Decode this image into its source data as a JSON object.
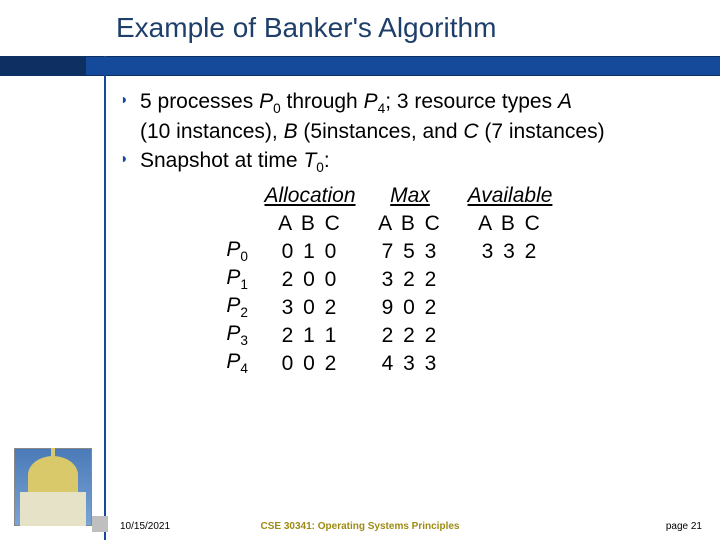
{
  "title": "Example of Banker's Algorithm",
  "bullets": {
    "b1_pre": "5 processes ",
    "b1_p0": "P",
    "b1_p0s": "0",
    "b1_mid1": " through ",
    "b1_p4": "P",
    "b1_p4s": "4",
    "b1_mid2": "; 3 resource types ",
    "b1_a": "A",
    "b1_line2a": "(10 instances), ",
    "b1_b": "B",
    "b1_line2b": " (5instances, and ",
    "b1_c": "C",
    "b1_line2c": " (7 instances)",
    "b2_pre": "Snapshot at time ",
    "b2_t": "T",
    "b2_ts": "0",
    "b2_post": ":"
  },
  "table": {
    "hdr_alloc": "Allocation",
    "hdr_max": "Max",
    "hdr_avail": "Available",
    "abc": "A B C",
    "rows": [
      {
        "p": "P",
        "s": "0",
        "alloc": "0 1 0",
        "max": "7 5 3",
        "avail": "3 3 2"
      },
      {
        "p": "P",
        "s": "1",
        "alloc": "2 0 0",
        "max": "3 2 2",
        "avail": ""
      },
      {
        "p": "P",
        "s": "2",
        "alloc": "3 0 2",
        "max": "9 0 2",
        "avail": ""
      },
      {
        "p": "P",
        "s": "3",
        "alloc": "2 1 1",
        "max": "2 2 2",
        "avail": ""
      },
      {
        "p": "P",
        "s": "4",
        "alloc": "0 0 2",
        "max": "4 3 3",
        "avail": ""
      }
    ]
  },
  "footer": {
    "date": "10/15/2021",
    "center": "CSE 30341: Operating Systems Principles",
    "page": "page 21"
  },
  "colors": {
    "brand_blue": "#154a9a",
    "title_color": "#1f3f6b",
    "gold_text": "#9d8b13"
  }
}
